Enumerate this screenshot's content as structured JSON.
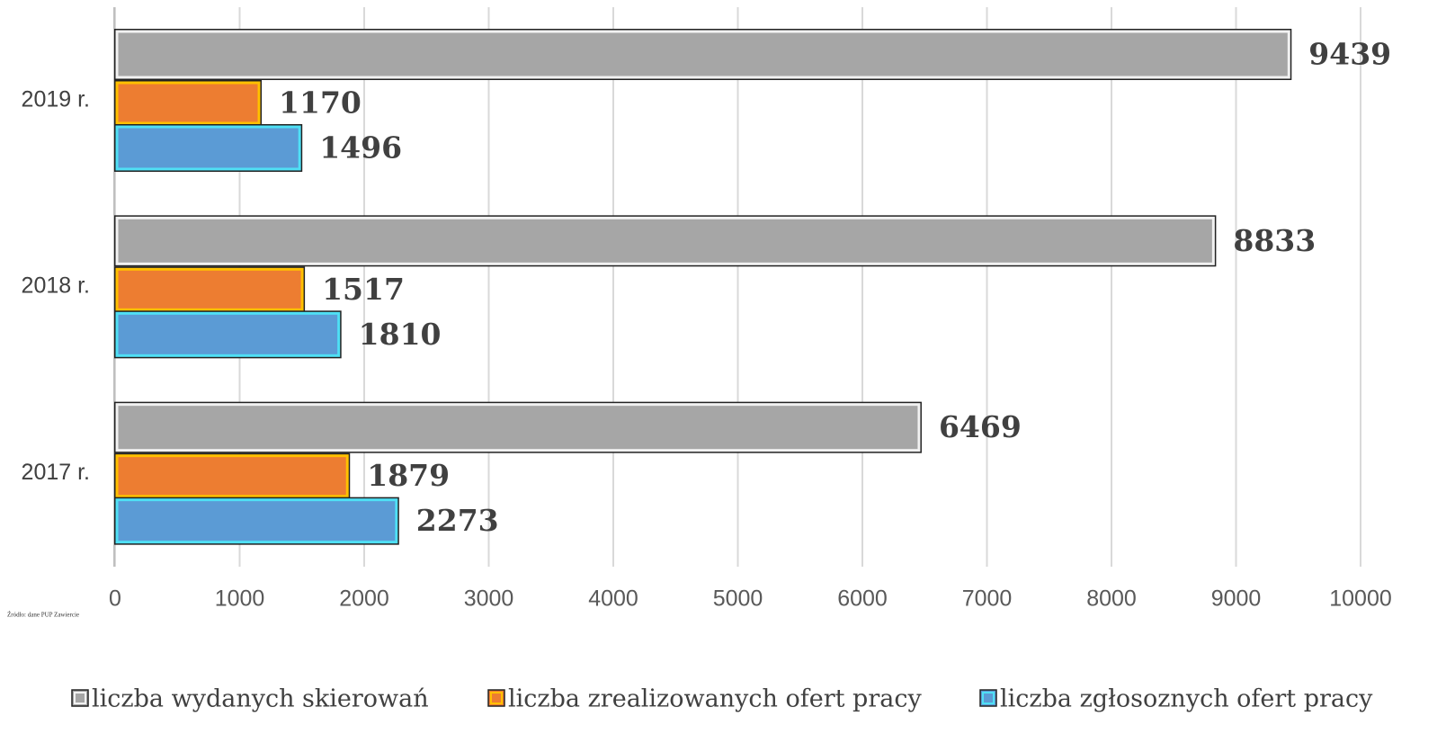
{
  "chart_data": {
    "type": "bar",
    "orientation": "horizontal",
    "source": "Źródło: dane PUP Zawiercie",
    "categories": [
      "2019 r.",
      "2018 r.",
      "2017 r."
    ],
    "series": [
      {
        "name": "liczba wydanych skierowań",
        "color": "#a6a6a6",
        "values": [
          9439,
          8833,
          6469
        ]
      },
      {
        "name": "liczba zrealizowanych ofert pracy",
        "color": "#ed7d31",
        "values": [
          1170,
          1517,
          1879
        ]
      },
      {
        "name": "liczba zgłosoznych ofert pracy",
        "color": "#5b9bd5",
        "values": [
          1496,
          1810,
          2273
        ]
      }
    ],
    "xlim": [
      0,
      10000
    ],
    "xticks": [
      0,
      1000,
      2000,
      3000,
      4000,
      5000,
      6000,
      7000,
      8000,
      9000,
      10000
    ],
    "grid": true,
    "legend": "bottom"
  }
}
